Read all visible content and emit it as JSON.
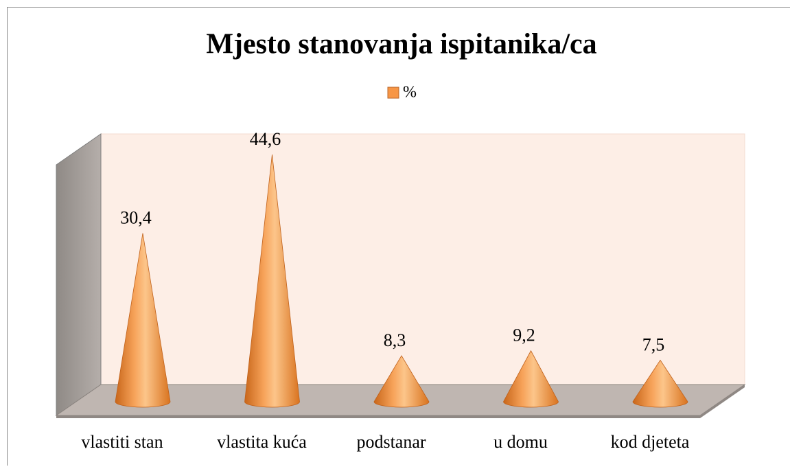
{
  "chart_data": {
    "type": "cone",
    "title": "Mjesto stanovanja ispitanika/ca",
    "categories": [
      "vlastiti stan",
      "vlastita kuća",
      "podstanar",
      "u domu",
      "kod djeteta"
    ],
    "series": [
      {
        "name": "%",
        "color": "#f79646",
        "values": [
          30.4,
          44.6,
          8.3,
          9.2,
          7.5
        ],
        "value_labels": [
          "30,4",
          "44,6",
          "8,3",
          "9,2",
          "7,5"
        ]
      }
    ],
    "legend": "top"
  }
}
